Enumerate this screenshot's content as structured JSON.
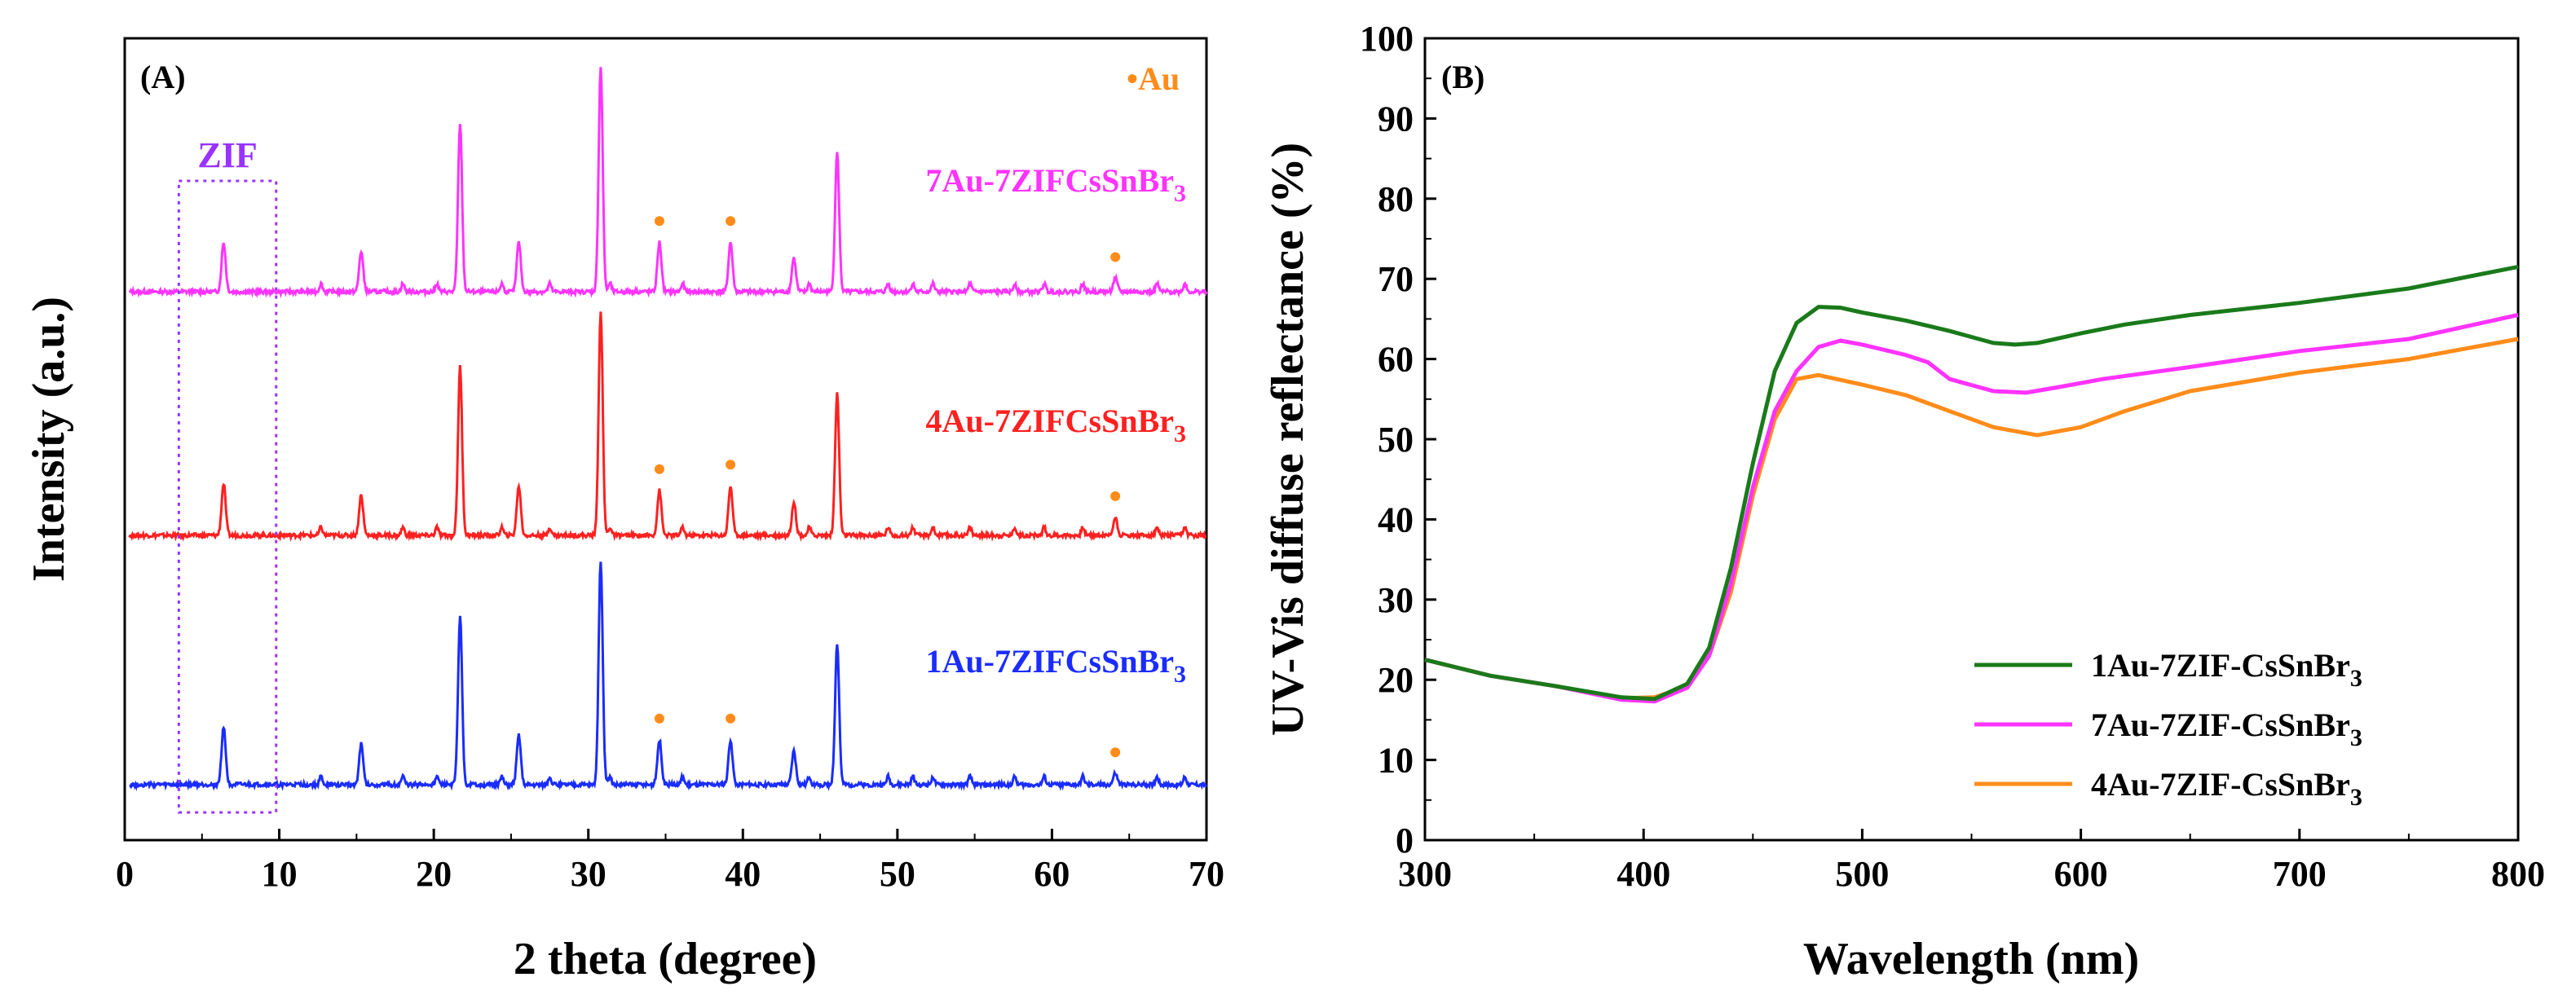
{
  "panel_a": {
    "label": "(A)",
    "ylabel": "Intensity (a.u.)",
    "xlabel": "2 theta (degree)",
    "marker_legend": "•Au",
    "box_label": "ZIF",
    "series_labels": [
      "7Au-7ZIFCsSnBr",
      "4Au-7ZIFCsSnBr",
      "1Au-7ZIFCsSnBr"
    ],
    "series_subscript": "3"
  },
  "panel_b": {
    "label": "(B)",
    "ylabel": "UV-Vis diffuse reflectance (%)",
    "xlabel": "Wavelength (nm)",
    "legend": [
      "1Au-7ZIF-CsSnBr",
      "7Au-7ZIF-CsSnBr",
      "4Au-7ZIF-CsSnBr"
    ],
    "legend_subscript": "3"
  },
  "chart_data": [
    {
      "type": "line",
      "title": "",
      "xlabel": "2 theta (degree)",
      "ylabel": "Intensity (a.u.)",
      "xlim": [
        0,
        70
      ],
      "xticks": [
        0,
        10,
        20,
        30,
        40,
        50,
        60,
        70
      ],
      "box_region": [
        3.5,
        9.8
      ],
      "peaks_x": [
        6.4,
        15.3,
        21.7,
        25.5,
        30.8,
        34.6,
        39.2,
        43.3,
        46.1,
        64.1
      ],
      "au_marked_peaks_x": [
        34.6,
        39.2,
        64.1
      ],
      "series": [
        {
          "name": "7Au-7ZIFCsSnBr3",
          "color": "#ff33ff",
          "relative_heights": [
            0.22,
            0.18,
            0.75,
            0.22,
            1.0,
            0.22,
            0.22,
            0.15,
            0.62,
            0.06
          ]
        },
        {
          "name": "4Au-7ZIFCsSnBr3",
          "color": "#ff2020",
          "relative_heights": [
            0.23,
            0.18,
            0.75,
            0.22,
            1.0,
            0.2,
            0.22,
            0.15,
            0.63,
            0.08
          ]
        },
        {
          "name": "1Au-7ZIFCsSnBr3",
          "color": "#1a2cff",
          "relative_heights": [
            0.26,
            0.18,
            0.75,
            0.22,
            1.0,
            0.2,
            0.2,
            0.15,
            0.63,
            0.05
          ]
        }
      ]
    },
    {
      "type": "line",
      "title": "",
      "xlabel": "Wavelength (nm)",
      "ylabel": "UV-Vis diffuse reflectance (%)",
      "xlim": [
        300,
        800
      ],
      "ylim": [
        0,
        100
      ],
      "xticks": [
        300,
        400,
        500,
        600,
        700,
        800
      ],
      "yticks": [
        0,
        10,
        20,
        30,
        40,
        50,
        60,
        70,
        80,
        90,
        100
      ],
      "legend_position": "bottom-right",
      "series": [
        {
          "name": "1Au-7ZIF-CsSnBr3",
          "color": "#1a7a1a",
          "x": [
            300,
            330,
            360,
            390,
            405,
            420,
            430,
            440,
            450,
            460,
            470,
            480,
            490,
            500,
            520,
            540,
            560,
            570,
            580,
            600,
            620,
            650,
            700,
            750,
            800
          ],
          "y": [
            22.5,
            20.5,
            19.2,
            17.8,
            17.6,
            19.5,
            24,
            34,
            47,
            58.5,
            64.5,
            66.5,
            66.4,
            65.8,
            64.8,
            63.5,
            62,
            61.8,
            62,
            63.2,
            64.3,
            65.5,
            67,
            68.8,
            71.5
          ]
        },
        {
          "name": "7Au-7ZIF-CsSnBr3",
          "color": "#ff33ff",
          "x": [
            300,
            330,
            360,
            390,
            405,
            420,
            430,
            440,
            450,
            460,
            470,
            480,
            490,
            500,
            520,
            530,
            540,
            560,
            575,
            590,
            610,
            650,
            700,
            750,
            800
          ],
          "y": [
            22.5,
            20.5,
            19.2,
            17.5,
            17.3,
            19,
            23,
            32,
            44,
            53.5,
            58.5,
            61.5,
            62.3,
            61.8,
            60.5,
            59.6,
            57.5,
            56,
            55.8,
            56.5,
            57.5,
            59,
            61,
            62.5,
            65.5
          ]
        },
        {
          "name": "4Au-7ZIF-CsSnBr3",
          "color": "#ff8c1a",
          "x": [
            300,
            330,
            360,
            390,
            405,
            420,
            430,
            440,
            450,
            460,
            470,
            480,
            500,
            520,
            540,
            560,
            580,
            600,
            620,
            650,
            700,
            750,
            800
          ],
          "y": [
            22.5,
            20.5,
            19.2,
            17.7,
            17.8,
            19.2,
            23,
            31,
            43,
            52.5,
            57.5,
            58,
            56.8,
            55.5,
            53.5,
            51.5,
            50.5,
            51.5,
            53.5,
            56,
            58.3,
            60,
            62.5
          ]
        }
      ]
    }
  ]
}
